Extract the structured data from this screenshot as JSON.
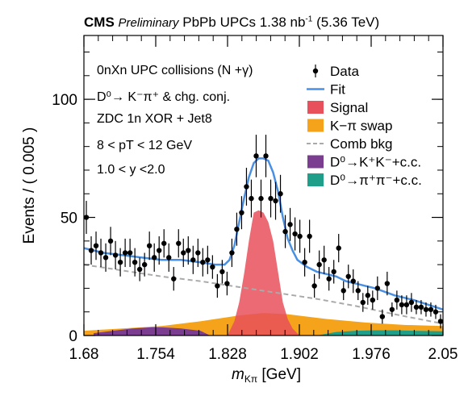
{
  "header": {
    "experiment": "CMS",
    "status": "Preliminary",
    "dataset_prefix": "PbPb UPCs 1.38 nb",
    "dataset_exp": "-1",
    "energy": "(5.36 TeV)"
  },
  "info_lines": [
    "0nXn UPC collisions (N +γ)",
    "D⁰→ K⁻π⁺ & chg. conj.",
    "ZDC 1n XOR + Jet8",
    "8 < pT < 12 GeV",
    "1.0 < y <2.0"
  ],
  "colors": {
    "data": "#000000",
    "fit": "#4a90e2",
    "signal": "#e8505b",
    "kpi_swap": "#f5a31a",
    "comb_bkg": "#aaaaaa",
    "kk": "#7b3d8f",
    "pipi": "#1f9e89"
  },
  "chart_data": {
    "type": "scatter",
    "xlabel": "m_Kπ [GeV]",
    "ylabel": "Events / ( 0.005 )",
    "xlim": [
      1.68,
      2.05
    ],
    "ylim": [
      0,
      127
    ],
    "x_ticks": [
      "1.68",
      "1.754",
      "1.828",
      "1.902",
      "1.976",
      "2.05"
    ],
    "y_ticks": [
      "0",
      "50",
      "100"
    ],
    "legend": {
      "placement": "top-right",
      "entries": [
        {
          "key": "data",
          "label": "Data",
          "style": "marker"
        },
        {
          "key": "fit",
          "label": "Fit",
          "style": "line"
        },
        {
          "key": "signal",
          "label": "Signal",
          "style": "fill"
        },
        {
          "key": "kpi_swap",
          "label": "K−π swap",
          "style": "fill"
        },
        {
          "key": "comb_bkg",
          "label": "Comb bkg",
          "style": "dashed"
        },
        {
          "key": "kk",
          "label": "D⁰→K⁺K⁻+c.c.",
          "style": "fill"
        },
        {
          "key": "pipi",
          "label": "D⁰→π⁺π⁻+c.c.",
          "style": "fill"
        }
      ]
    },
    "series": [
      {
        "name": "Data",
        "x": [
          1.6825,
          1.6875,
          1.6925,
          1.6975,
          1.7025,
          1.7075,
          1.7125,
          1.7175,
          1.7225,
          1.7275,
          1.7325,
          1.7375,
          1.7425,
          1.7475,
          1.7525,
          1.7575,
          1.7625,
          1.7675,
          1.7725,
          1.7775,
          1.7825,
          1.7875,
          1.7925,
          1.7975,
          1.8025,
          1.8075,
          1.8125,
          1.8175,
          1.8225,
          1.8275,
          1.8325,
          1.8375,
          1.8425,
          1.8475,
          1.8525,
          1.8575,
          1.8625,
          1.8675,
          1.8725,
          1.8775,
          1.8825,
          1.8875,
          1.8925,
          1.8975,
          1.9025,
          1.9075,
          1.9125,
          1.9175,
          1.9225,
          1.9275,
          1.9325,
          1.9375,
          1.9425,
          1.9475,
          1.9525,
          1.9575,
          1.9625,
          1.9675,
          1.9725,
          1.9775,
          1.9825,
          1.9875,
          1.9925,
          1.9975,
          2.0025,
          2.0075,
          2.0125,
          2.0175,
          2.0225,
          2.0275,
          2.0325,
          2.0375,
          2.0425,
          2.0475
        ],
        "y": [
          50,
          36,
          38,
          35,
          33,
          40,
          34,
          31,
          35,
          35,
          31,
          28,
          30,
          38,
          33,
          36,
          39,
          33,
          24,
          39,
          35,
          36,
          32,
          35,
          31,
          32,
          29,
          21,
          27,
          22,
          35,
          45,
          52,
          63,
          58,
          76,
          58,
          76,
          58,
          57,
          60,
          44,
          47,
          43,
          42,
          31,
          42,
          21,
          30,
          32,
          24,
          27,
          37,
          19,
          25,
          23,
          19,
          14,
          17,
          15,
          20,
          8,
          22,
          11,
          15,
          13,
          13,
          14,
          12,
          12,
          11,
          11,
          10,
          6
        ],
        "yerr": [
          7,
          6,
          6,
          6,
          6,
          6,
          6,
          6,
          6,
          6,
          6,
          5,
          5,
          6,
          6,
          6,
          6,
          6,
          5,
          6,
          6,
          6,
          6,
          6,
          6,
          6,
          5,
          5,
          5,
          5,
          6,
          7,
          7,
          8,
          8,
          9,
          8,
          9,
          8,
          8,
          8,
          7,
          7,
          7,
          7,
          6,
          7,
          5,
          6,
          6,
          5,
          5,
          6,
          4,
          5,
          5,
          4,
          4,
          4,
          4,
          5,
          3,
          5,
          3,
          4,
          4,
          4,
          4,
          3,
          3,
          3,
          3,
          3,
          3
        ]
      },
      {
        "name": "Fit",
        "x": [
          1.68,
          1.7,
          1.72,
          1.74,
          1.76,
          1.78,
          1.8,
          1.815,
          1.825,
          1.83,
          1.835,
          1.84,
          1.845,
          1.85,
          1.855,
          1.86,
          1.865,
          1.87,
          1.875,
          1.88,
          1.885,
          1.89,
          1.895,
          1.9,
          1.91,
          1.92,
          1.93,
          1.94,
          1.95,
          1.96,
          1.98,
          2.0,
          2.02,
          2.05
        ],
        "y": [
          37,
          35,
          34,
          33,
          32,
          32,
          31,
          30,
          30,
          32,
          38,
          48,
          58,
          67,
          73,
          75,
          75,
          74,
          69,
          61,
          50,
          41,
          36,
          32,
          29,
          27,
          26,
          25,
          23,
          22,
          20,
          17,
          15,
          11
        ]
      },
      {
        "name": "Signal",
        "x": [
          1.828,
          1.835,
          1.84,
          1.845,
          1.85,
          1.855,
          1.86,
          1.865,
          1.87,
          1.875,
          1.88,
          1.885,
          1.89,
          1.895,
          1.902
        ],
        "y": [
          0,
          6,
          14,
          26,
          40,
          52,
          53,
          52,
          48,
          40,
          27,
          14,
          7,
          3,
          0
        ]
      },
      {
        "name": "K−π swap",
        "x": [
          1.68,
          1.72,
          1.76,
          1.8,
          1.84,
          1.865,
          1.89,
          1.93,
          1.97,
          2.01,
          2.05
        ],
        "y": [
          2,
          3,
          4,
          6,
          8.5,
          9.5,
          9,
          7,
          5.5,
          4.5,
          4
        ]
      },
      {
        "name": "Comb bkg",
        "x": [
          1.68,
          1.72,
          1.76,
          1.8,
          1.84,
          1.88,
          1.92,
          1.96,
          2.0,
          2.05
        ],
        "y": [
          30,
          27.5,
          25,
          23,
          20.5,
          18,
          15.5,
          12.5,
          9,
          5
        ]
      },
      {
        "name": "D⁰→K⁺K⁻+c.c.",
        "x": [
          1.69,
          1.71,
          1.73,
          1.75,
          1.76,
          1.78,
          1.8,
          1.81
        ],
        "y": [
          1,
          2,
          3,
          3.5,
          3.5,
          3,
          2,
          0
        ]
      },
      {
        "name": "D⁰→π⁺π⁻+c.c.",
        "x": [
          1.92,
          1.94,
          1.96,
          1.98,
          2.0,
          2.02,
          2.05
        ],
        "y": [
          0,
          1.5,
          2,
          2.2,
          2.2,
          2,
          1.8
        ]
      }
    ]
  }
}
